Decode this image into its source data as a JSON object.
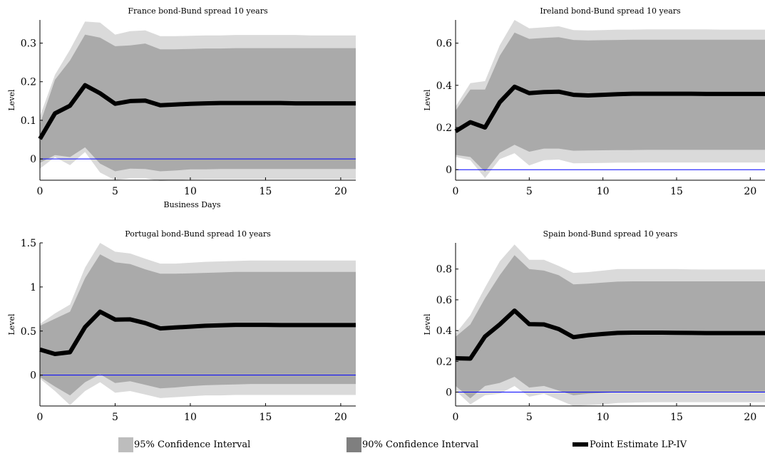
{
  "chart_data": [
    {
      "type": "area",
      "title": "France bond-Bund spread 10 years",
      "xlabel": "Business Days",
      "ylabel": "Level",
      "xlim": [
        0,
        21
      ],
      "ylim": [
        -0.055,
        0.36
      ],
      "xticks": [
        "0",
        "5",
        "10",
        "15",
        "20"
      ],
      "yticks": [
        "0",
        "0.1",
        "0.2",
        "0.3"
      ],
      "x": [
        0,
        1,
        2,
        3,
        4,
        5,
        6,
        7,
        8,
        9,
        10,
        11,
        12,
        13,
        14,
        15,
        16,
        17,
        18,
        19,
        20,
        21
      ],
      "series": [
        {
          "name": "Point Estimate LP-IV",
          "values": [
            0.052,
            0.118,
            0.138,
            0.191,
            0.17,
            0.143,
            0.15,
            0.151,
            0.139,
            0.141,
            0.143,
            0.144,
            0.145,
            0.145,
            0.145,
            0.145,
            0.145,
            0.144,
            0.144,
            0.144,
            0.144,
            0.144
          ]
        },
        {
          "name": "95% Confidence Interval",
          "lower": [
            -0.025,
            0.005,
            -0.016,
            0.018,
            -0.035,
            -0.055,
            -0.05,
            -0.05,
            -0.057,
            -0.055,
            -0.053,
            -0.052,
            -0.052,
            -0.052,
            -0.052,
            -0.052,
            -0.052,
            -0.052,
            -0.052,
            -0.052,
            -0.052,
            -0.052
          ],
          "upper": [
            0.11,
            0.218,
            0.283,
            0.356,
            0.353,
            0.322,
            0.331,
            0.333,
            0.318,
            0.318,
            0.319,
            0.32,
            0.32,
            0.321,
            0.321,
            0.321,
            0.321,
            0.321,
            0.32,
            0.32,
            0.32,
            0.32
          ]
        },
        {
          "name": "90% Confidence Interval",
          "lower": [
            -0.01,
            0.01,
            0.005,
            0.03,
            -0.012,
            -0.032,
            -0.025,
            -0.026,
            -0.032,
            -0.03,
            -0.027,
            -0.027,
            -0.026,
            -0.026,
            -0.026,
            -0.026,
            -0.026,
            -0.026,
            -0.026,
            -0.026,
            -0.026,
            -0.026
          ],
          "upper": [
            0.09,
            0.205,
            0.255,
            0.322,
            0.314,
            0.292,
            0.294,
            0.299,
            0.284,
            0.284,
            0.285,
            0.286,
            0.286,
            0.287,
            0.287,
            0.287,
            0.287,
            0.287,
            0.287,
            0.287,
            0.287,
            0.287
          ]
        }
      ]
    },
    {
      "type": "area",
      "title": "Ireland bond-Bund spread 10 years",
      "xlabel": "",
      "ylabel": "Level",
      "xlim": [
        0,
        21
      ],
      "ylim": [
        -0.05,
        0.71
      ],
      "xticks": [
        "0",
        "5",
        "10",
        "15",
        "20"
      ],
      "yticks": [
        "0",
        "0.2",
        "0.4",
        "0.6"
      ],
      "x": [
        0,
        1,
        2,
        3,
        4,
        5,
        6,
        7,
        8,
        9,
        10,
        11,
        12,
        13,
        14,
        15,
        16,
        17,
        18,
        19,
        20,
        21
      ],
      "series": [
        {
          "name": "Point Estimate LP-IV",
          "values": [
            0.182,
            0.225,
            0.2,
            0.32,
            0.393,
            0.363,
            0.368,
            0.37,
            0.355,
            0.352,
            0.355,
            0.358,
            0.36,
            0.36,
            0.36,
            0.36,
            0.36,
            0.359,
            0.359,
            0.359,
            0.359,
            0.359
          ]
        },
        {
          "name": "95% Confidence Interval",
          "lower": [
            0.06,
            0.045,
            -0.04,
            0.05,
            0.078,
            0.02,
            0.045,
            0.048,
            0.03,
            0.031,
            0.032,
            0.033,
            0.033,
            0.034,
            0.034,
            0.034,
            0.034,
            0.034,
            0.034,
            0.034,
            0.034,
            0.034
          ],
          "upper": [
            0.3,
            0.41,
            0.42,
            0.59,
            0.71,
            0.67,
            0.675,
            0.68,
            0.662,
            0.66,
            0.662,
            0.664,
            0.664,
            0.665,
            0.665,
            0.665,
            0.665,
            0.665,
            0.664,
            0.664,
            0.664,
            0.664
          ]
        },
        {
          "name": "90% Confidence Interval",
          "lower": [
            0.07,
            0.06,
            -0.01,
            0.08,
            0.118,
            0.085,
            0.1,
            0.1,
            0.09,
            0.091,
            0.092,
            0.093,
            0.093,
            0.094,
            0.094,
            0.094,
            0.094,
            0.094,
            0.094,
            0.094,
            0.094,
            0.094
          ],
          "upper": [
            0.28,
            0.38,
            0.38,
            0.54,
            0.65,
            0.62,
            0.625,
            0.628,
            0.615,
            0.613,
            0.614,
            0.615,
            0.616,
            0.616,
            0.616,
            0.616,
            0.616,
            0.616,
            0.616,
            0.616,
            0.616,
            0.616
          ]
        }
      ]
    },
    {
      "type": "area",
      "title": "Portugal bond-Bund spread 10 years",
      "xlabel": "",
      "ylabel": "Level",
      "xlim": [
        0,
        21
      ],
      "ylim": [
        -0.35,
        1.5
      ],
      "xticks": [
        "0",
        "5",
        "10",
        "15",
        "20"
      ],
      "yticks": [
        "0",
        "0.5",
        "1",
        "1.5"
      ],
      "x": [
        0,
        1,
        2,
        3,
        4,
        5,
        6,
        7,
        8,
        9,
        10,
        11,
        12,
        13,
        14,
        15,
        16,
        17,
        18,
        19,
        20,
        21
      ],
      "series": [
        {
          "name": "Point Estimate LP-IV",
          "values": [
            0.29,
            0.24,
            0.26,
            0.545,
            0.72,
            0.63,
            0.632,
            0.59,
            0.53,
            0.54,
            0.55,
            0.56,
            0.565,
            0.57,
            0.57,
            0.57,
            0.568,
            0.568,
            0.568,
            0.568,
            0.568,
            0.568
          ]
        },
        {
          "name": "95% Confidence Interval",
          "lower": [
            -0.04,
            -0.18,
            -0.34,
            -0.18,
            -0.08,
            -0.2,
            -0.18,
            -0.22,
            -0.26,
            -0.25,
            -0.24,
            -0.23,
            -0.23,
            -0.225,
            -0.225,
            -0.225,
            -0.225,
            -0.225,
            -0.225,
            -0.225,
            -0.225,
            -0.225
          ],
          "upper": [
            0.58,
            0.7,
            0.8,
            1.22,
            1.5,
            1.4,
            1.38,
            1.32,
            1.265,
            1.265,
            1.275,
            1.285,
            1.29,
            1.295,
            1.3,
            1.3,
            1.3,
            1.3,
            1.3,
            1.3,
            1.3,
            1.3
          ]
        },
        {
          "name": "90% Confidence Interval",
          "lower": [
            -0.02,
            -0.13,
            -0.23,
            -0.08,
            0.01,
            -0.09,
            -0.07,
            -0.11,
            -0.15,
            -0.14,
            -0.125,
            -0.115,
            -0.11,
            -0.105,
            -0.1,
            -0.1,
            -0.1,
            -0.1,
            -0.1,
            -0.1,
            -0.1,
            -0.1
          ],
          "upper": [
            0.56,
            0.64,
            0.72,
            1.1,
            1.37,
            1.28,
            1.26,
            1.2,
            1.15,
            1.15,
            1.155,
            1.16,
            1.165,
            1.17,
            1.17,
            1.17,
            1.17,
            1.17,
            1.17,
            1.17,
            1.17,
            1.17
          ]
        }
      ]
    },
    {
      "type": "area",
      "title": "Spain bond-Bund spread 10 years",
      "xlabel": "",
      "ylabel": "Level",
      "xlim": [
        0,
        21
      ],
      "ylim": [
        -0.09,
        0.97
      ],
      "xticks": [
        "0",
        "5",
        "10",
        "15",
        "20"
      ],
      "yticks": [
        "0",
        "0.2",
        "0.4",
        "0.6",
        "0.8"
      ],
      "x": [
        0,
        1,
        2,
        3,
        4,
        5,
        6,
        7,
        8,
        9,
        10,
        11,
        12,
        13,
        14,
        15,
        16,
        17,
        18,
        19,
        20,
        21
      ],
      "series": [
        {
          "name": "Point Estimate LP-IV",
          "values": [
            0.22,
            0.218,
            0.362,
            0.44,
            0.53,
            0.442,
            0.44,
            0.41,
            0.357,
            0.37,
            0.378,
            0.385,
            0.387,
            0.387,
            0.387,
            0.386,
            0.385,
            0.384,
            0.384,
            0.384,
            0.384,
            0.384
          ]
        },
        {
          "name": "95% Confidence Interval",
          "lower": [
            0.01,
            -0.08,
            -0.02,
            -0.01,
            0.04,
            -0.03,
            -0.01,
            -0.05,
            -0.09,
            -0.085,
            -0.08,
            -0.07,
            -0.068,
            -0.066,
            -0.065,
            -0.065,
            -0.065,
            -0.065,
            -0.065,
            -0.065,
            -0.065,
            -0.065
          ],
          "upper": [
            0.38,
            0.5,
            0.68,
            0.85,
            0.96,
            0.86,
            0.86,
            0.82,
            0.775,
            0.78,
            0.79,
            0.8,
            0.8,
            0.8,
            0.8,
            0.8,
            0.798,
            0.797,
            0.797,
            0.797,
            0.797,
            0.797
          ]
        },
        {
          "name": "90% Confidence Interval",
          "lower": [
            0.04,
            -0.04,
            0.04,
            0.06,
            0.1,
            0.03,
            0.04,
            0.01,
            -0.02,
            -0.01,
            -0.005,
            0.0,
            0.0,
            0.0,
            0.0,
            0.0,
            0.0,
            0.0,
            0.0,
            0.0,
            0.0,
            0.0
          ],
          "upper": [
            0.36,
            0.44,
            0.61,
            0.76,
            0.89,
            0.8,
            0.79,
            0.76,
            0.7,
            0.705,
            0.712,
            0.718,
            0.72,
            0.72,
            0.72,
            0.72,
            0.72,
            0.72,
            0.72,
            0.72,
            0.72,
            0.72
          ]
        }
      ]
    }
  ],
  "legend": {
    "items": [
      {
        "label": "95% Confidence Interval",
        "color": "#bdbdbd"
      },
      {
        "label": "90% Confidence Interval",
        "color": "#7f7f7f"
      },
      {
        "label": "Point Estimate LP-IV",
        "color": "#000000"
      }
    ]
  },
  "colors": {
    "ci95": "#dadada",
    "ci90": "#aaaaaa",
    "line": "#000000",
    "zero_line": "#0000ff"
  }
}
